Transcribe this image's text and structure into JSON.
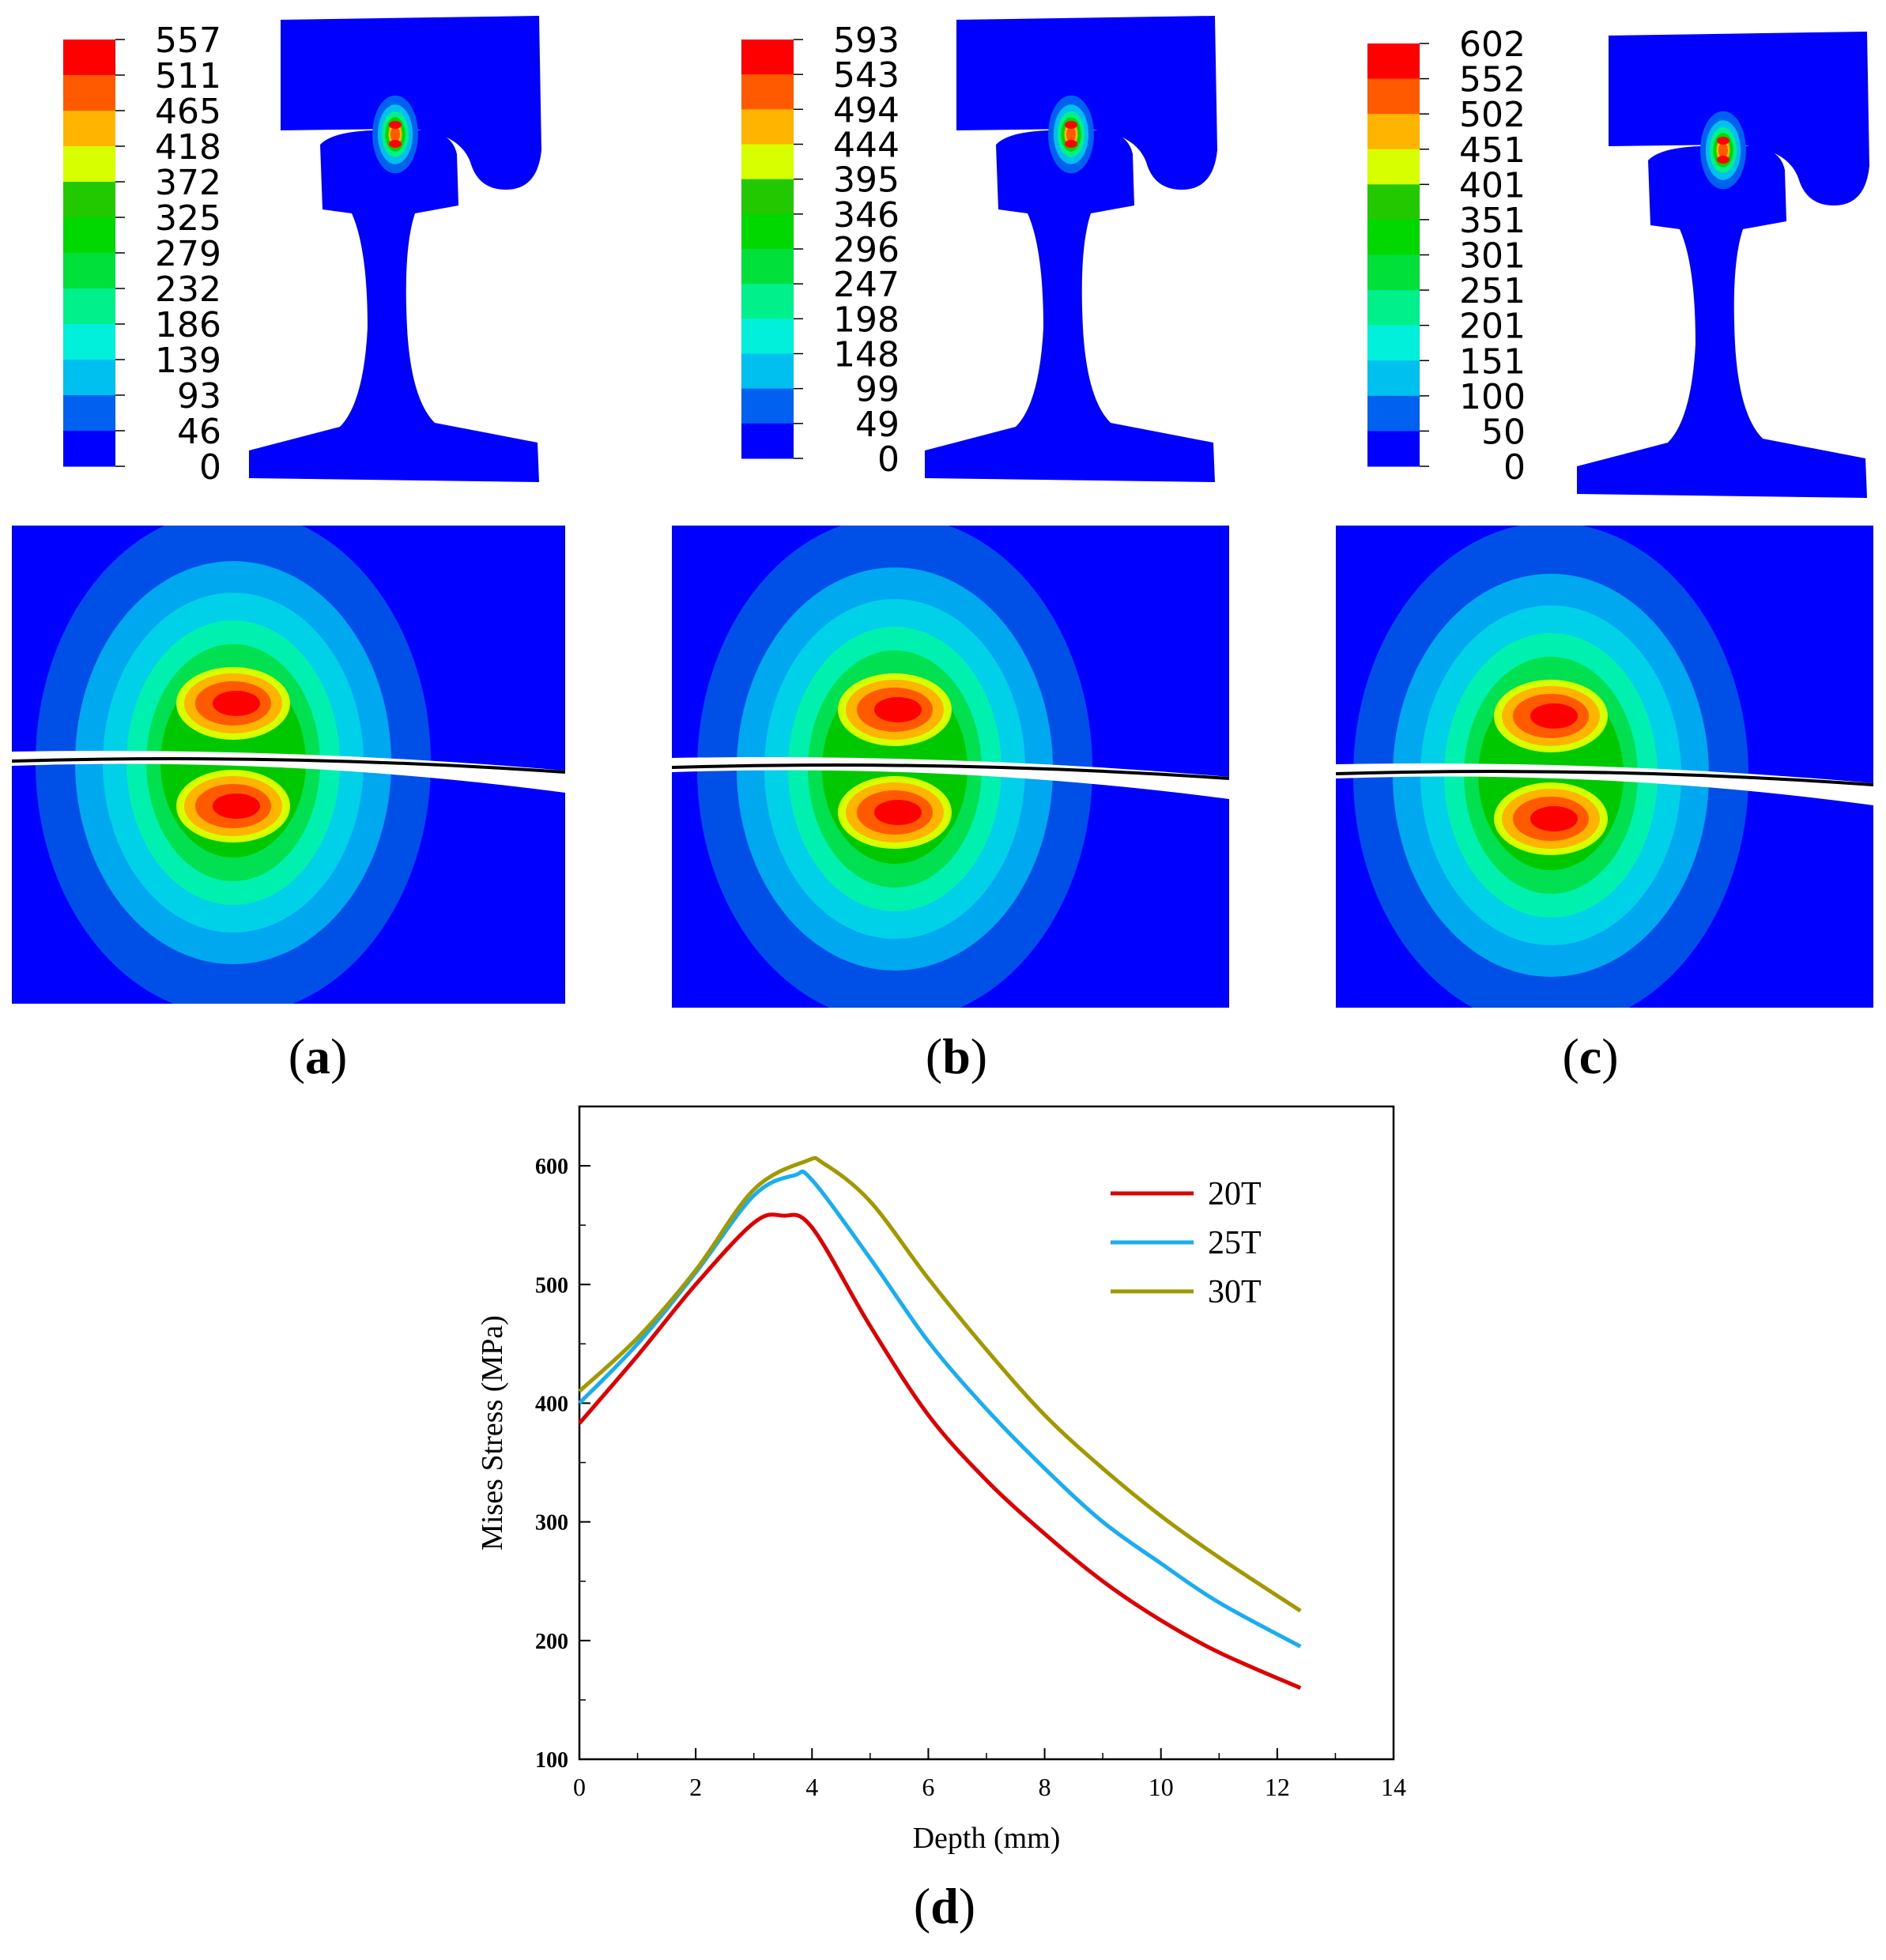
{
  "panels": [
    {
      "id": "a",
      "label_open": "(",
      "label_letter": "a",
      "label_close": ")",
      "legend": [
        "557",
        "511",
        "465",
        "418",
        "372",
        "325",
        "279",
        "232",
        "186",
        "139",
        "93",
        "46",
        "0"
      ]
    },
    {
      "id": "b",
      "label_open": "(",
      "label_letter": "b",
      "label_close": ")",
      "legend": [
        "593",
        "543",
        "494",
        "444",
        "395",
        "346",
        "296",
        "247",
        "198",
        "148",
        "99",
        "49",
        "0"
      ]
    },
    {
      "id": "c",
      "label_open": "(",
      "label_letter": "c",
      "label_close": ")",
      "legend": [
        "602",
        "552",
        "502",
        "451",
        "401",
        "351",
        "301",
        "251",
        "201",
        "151",
        "100",
        "50",
        "0"
      ]
    }
  ],
  "contour_colors": [
    "#ff0000",
    "#ff5a00",
    "#ffb400",
    "#d7ff00",
    "#22c800",
    "#00d800",
    "#00e03a",
    "#00f08c",
    "#00f0dc",
    "#00c0f0",
    "#0060f0",
    "#0000ff"
  ],
  "rail_color": "#0000ff",
  "chart_data": {
    "type": "line",
    "panel_label_open": "(",
    "panel_label_letter": "d",
    "panel_label_close": ")",
    "xlabel": "Depth (mm)",
    "ylabel": "Mises Stress (MPa)",
    "xlim": [
      0,
      14
    ],
    "ylim": [
      100,
      650
    ],
    "xticks": [
      0,
      2,
      4,
      6,
      8,
      10,
      12,
      14
    ],
    "yticks": [
      100,
      200,
      300,
      400,
      500,
      600
    ],
    "legend_position": "top-right",
    "series": [
      {
        "name": "20T",
        "color": "#e00000",
        "x": [
          0,
          1,
          2,
          3,
          3.5,
          4,
          5,
          6,
          7,
          8,
          9,
          10,
          11,
          12.4
        ],
        "y": [
          383,
          440,
          500,
          552,
          558,
          548,
          465,
          390,
          335,
          290,
          250,
          217,
          190,
          160
        ]
      },
      {
        "name": "25T",
        "color": "#18aef0",
        "x": [
          0,
          1,
          2,
          3,
          3.7,
          4,
          5,
          6,
          7,
          8,
          9,
          10,
          11,
          12.4
        ],
        "y": [
          400,
          450,
          510,
          575,
          592,
          588,
          522,
          452,
          395,
          345,
          300,
          265,
          232,
          195
        ]
      },
      {
        "name": "30T",
        "color": "#a09a00",
        "x": [
          0,
          1,
          2,
          3,
          3.9,
          4.2,
          5,
          6,
          7,
          8,
          9,
          10,
          11,
          12.4
        ],
        "y": [
          410,
          455,
          512,
          580,
          604,
          602,
          570,
          505,
          445,
          390,
          345,
          305,
          270,
          225
        ]
      }
    ]
  }
}
